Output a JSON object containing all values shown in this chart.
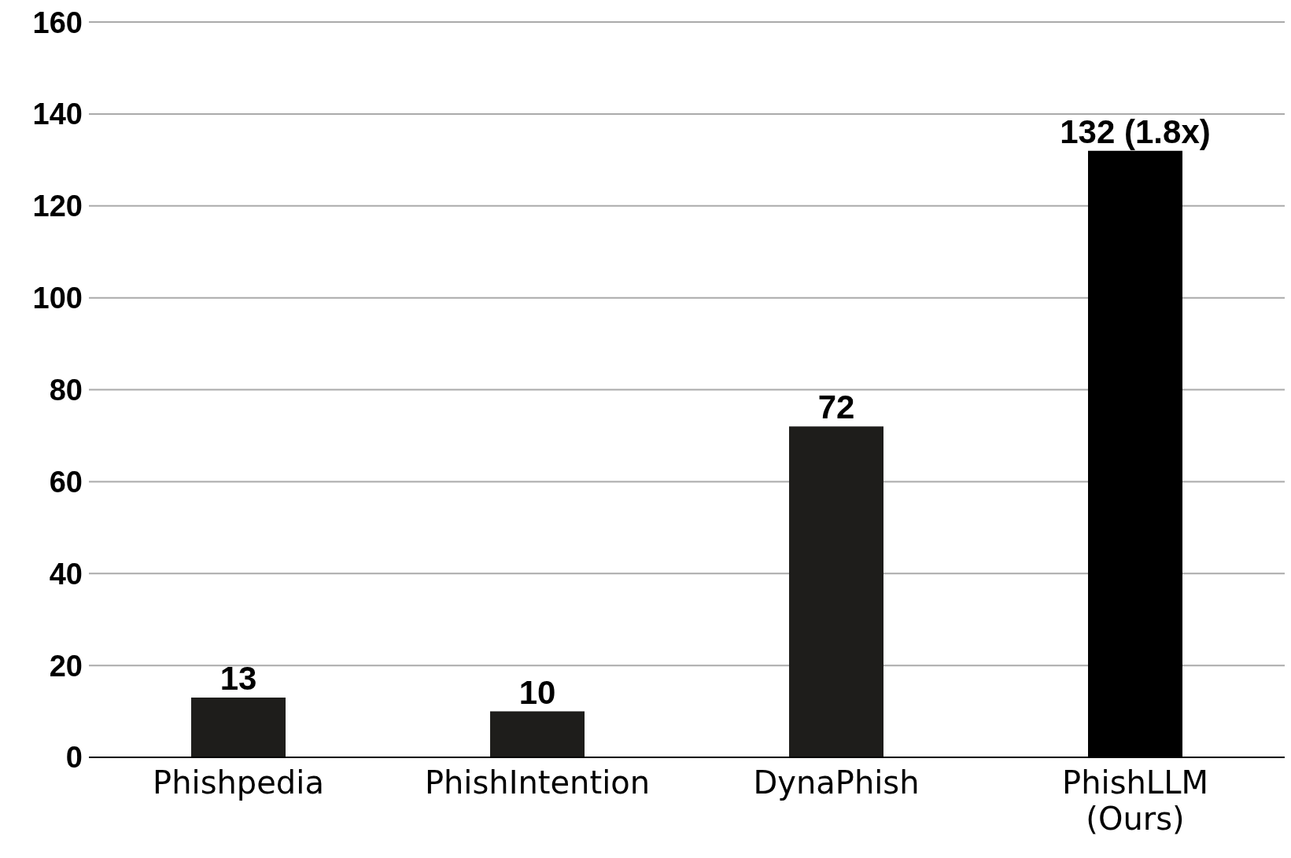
{
  "chart_data": {
    "type": "bar",
    "categories": [
      "Phishpedia",
      "PhishIntention",
      "DynaPhish",
      "PhishLLM (Ours)"
    ],
    "values": [
      13,
      10,
      72,
      132
    ],
    "colors": [
      "#1e1d1b",
      "#1e1d1b",
      "#1e1d1b",
      "#000000"
    ],
    "value_labels": [
      "13",
      "10",
      "72",
      "132 (1.8x)"
    ],
    "ylim": [
      0,
      160
    ],
    "yticks": [
      0,
      20,
      40,
      60,
      80,
      100,
      120,
      140,
      160
    ],
    "grid": "y"
  }
}
